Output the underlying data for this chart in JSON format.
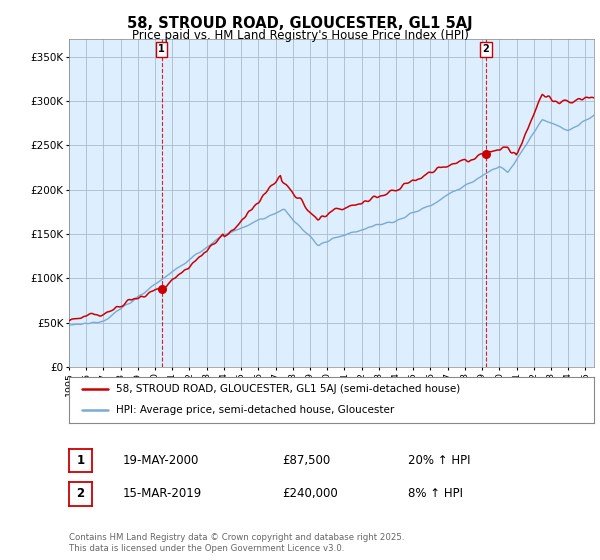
{
  "title": "58, STROUD ROAD, GLOUCESTER, GL1 5AJ",
  "subtitle": "Price paid vs. HM Land Registry's House Price Index (HPI)",
  "ylim": [
    0,
    370000
  ],
  "yticks": [
    0,
    50000,
    100000,
    150000,
    200000,
    250000,
    300000,
    350000
  ],
  "ytick_labels": [
    "£0",
    "£50K",
    "£100K",
    "£150K",
    "£200K",
    "£250K",
    "£300K",
    "£350K"
  ],
  "xlim_start": 1995.0,
  "xlim_end": 2025.5,
  "hpi_color": "#7aaad4",
  "price_color": "#cc0000",
  "plot_bg_color": "#ddeeff",
  "marker1_year": 2000.38,
  "marker1_price": 87500,
  "marker2_year": 2019.21,
  "marker2_price": 240000,
  "legend_label_price": "58, STROUD ROAD, GLOUCESTER, GL1 5AJ (semi-detached house)",
  "legend_label_hpi": "HPI: Average price, semi-detached house, Gloucester",
  "annotation1_date": "19-MAY-2000",
  "annotation1_price": "£87,500",
  "annotation1_pct": "20% ↑ HPI",
  "annotation2_date": "15-MAR-2019",
  "annotation2_price": "£240,000",
  "annotation2_pct": "8% ↑ HPI",
  "footer": "Contains HM Land Registry data © Crown copyright and database right 2025.\nThis data is licensed under the Open Government Licence v3.0.",
  "bg_color": "#ffffff",
  "grid_color": "#aabbcc"
}
